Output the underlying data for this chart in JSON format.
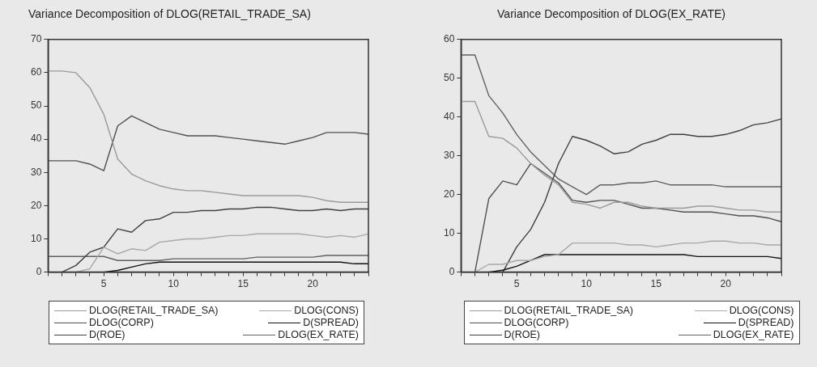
{
  "chart_data": [
    {
      "type": "line",
      "title": "Variance Decomposition of DLOG(RETAIL_TRADE_SA)",
      "x": [
        1,
        2,
        3,
        4,
        5,
        6,
        7,
        8,
        9,
        10,
        11,
        12,
        13,
        14,
        15,
        16,
        17,
        18,
        19,
        20,
        21,
        22,
        23,
        24
      ],
      "xlim": [
        1,
        24
      ],
      "xticks": [
        {
          "value": 1,
          "label": null
        },
        {
          "value": 2,
          "label": null
        },
        {
          "value": 3,
          "label": null
        },
        {
          "value": 4,
          "label": null
        },
        5,
        {
          "value": 6,
          "label": null
        },
        {
          "value": 7,
          "label": null
        },
        {
          "value": 8,
          "label": null
        },
        {
          "value": 9,
          "label": null
        },
        10,
        {
          "value": 11,
          "label": null
        },
        {
          "value": 12,
          "label": null
        },
        {
          "value": 13,
          "label": null
        },
        {
          "value": 14,
          "label": null
        },
        15,
        {
          "value": 16,
          "label": null
        },
        {
          "value": 17,
          "label": null
        },
        {
          "value": 18,
          "label": null
        },
        {
          "value": 19,
          "label": null
        },
        20,
        {
          "value": 21,
          "label": null
        },
        {
          "value": 22,
          "label": null
        },
        {
          "value": 23,
          "label": null
        },
        {
          "value": 24,
          "label": null
        }
      ],
      "ylim": [
        0,
        70
      ],
      "yticks": [
        0,
        10,
        20,
        30,
        40,
        50,
        60,
        70
      ],
      "grid": false,
      "legend": "bottom",
      "series": [
        {
          "name": "DLOG(RETAIL_TRADE_SA)",
          "color": "#9a9a9a",
          "values": [
            60.5,
            60.5,
            60,
            55.5,
            47.5,
            34,
            29.5,
            27.5,
            26,
            25,
            24.5,
            24.5,
            24,
            23.5,
            23,
            23,
            23,
            23,
            23,
            22.5,
            21.5,
            21,
            21,
            21
          ]
        },
        {
          "name": "DLOG(CONS)",
          "color": "#a8a8a8",
          "values": [
            0,
            0,
            0,
            1,
            7.5,
            5.5,
            7,
            6.5,
            9,
            9.5,
            10,
            10,
            10.5,
            11,
            11,
            11.5,
            11.5,
            11.5,
            11.5,
            11,
            10.5,
            11,
            10.5,
            11.5
          ]
        },
        {
          "name": "DLOG(CORP)",
          "color": "#505050",
          "values": [
            33.5,
            33.5,
            33.5,
            32.5,
            30.5,
            44,
            47,
            45,
            43,
            42,
            41,
            41,
            41,
            40.5,
            40,
            39.5,
            39,
            38.5,
            39.5,
            40.5,
            42,
            42,
            42,
            41.5
          ]
        },
        {
          "name": "D(SPREAD)",
          "color": "#111111",
          "values": [
            0,
            0,
            0,
            0,
            0,
            0.5,
            1.5,
            2.5,
            3,
            3,
            3,
            3,
            3,
            3,
            3,
            3,
            3,
            3,
            3,
            3,
            3,
            3,
            2.5,
            2.5
          ]
        },
        {
          "name": "D(ROE)",
          "color": "#404040",
          "values": [
            0,
            0,
            2,
            6,
            7.5,
            13,
            12,
            15.5,
            16,
            18,
            18,
            18.5,
            18.5,
            19,
            19,
            19.5,
            19.5,
            19,
            18.5,
            18.5,
            19,
            18.5,
            19,
            19
          ]
        },
        {
          "name": "DLOG(EX_RATE)",
          "color": "#606060",
          "values": [
            4.7,
            4.7,
            4.7,
            4.7,
            4.7,
            3.5,
            3.5,
            3.5,
            3.5,
            4,
            4,
            4,
            4,
            4,
            4,
            4.5,
            4.5,
            4.5,
            4.5,
            4.5,
            5,
            5,
            5,
            5
          ]
        }
      ]
    },
    {
      "type": "line",
      "title": "Variance Decomposition of DLOG(EX_RATE)",
      "x": [
        1,
        2,
        3,
        4,
        5,
        6,
        7,
        8,
        9,
        10,
        11,
        12,
        13,
        14,
        15,
        16,
        17,
        18,
        19,
        20,
        21,
        22,
        23,
        24
      ],
      "xlim": [
        1,
        24
      ],
      "xticks": [
        {
          "value": 1,
          "label": null
        },
        {
          "value": 2,
          "label": null
        },
        {
          "value": 3,
          "label": null
        },
        {
          "value": 4,
          "label": null
        },
        5,
        {
          "value": 6,
          "label": null
        },
        {
          "value": 7,
          "label": null
        },
        {
          "value": 8,
          "label": null
        },
        {
          "value": 9,
          "label": null
        },
        10,
        {
          "value": 11,
          "label": null
        },
        {
          "value": 12,
          "label": null
        },
        {
          "value": 13,
          "label": null
        },
        {
          "value": 14,
          "label": null
        },
        15,
        {
          "value": 16,
          "label": null
        },
        {
          "value": 17,
          "label": null
        },
        {
          "value": 18,
          "label": null
        },
        {
          "value": 19,
          "label": null
        },
        20,
        {
          "value": 21,
          "label": null
        },
        {
          "value": 22,
          "label": null
        },
        {
          "value": 23,
          "label": null
        },
        {
          "value": 24,
          "label": null
        }
      ],
      "ylim": [
        0,
        60
      ],
      "yticks": [
        0,
        10,
        20,
        30,
        40,
        50,
        60
      ],
      "grid": false,
      "legend": "bottom",
      "series": [
        {
          "name": "DLOG(RETAIL_TRADE_SA)",
          "color": "#9a9a9a",
          "values": [
            44,
            44,
            35,
            34.5,
            32,
            28,
            25,
            22.5,
            18,
            17.5,
            16.5,
            18,
            18,
            17,
            16.5,
            16.5,
            16.5,
            17,
            17,
            16.5,
            16,
            16,
            15.5,
            15.5
          ]
        },
        {
          "name": "DLOG(CONS)",
          "color": "#a8a8a8",
          "values": [
            0,
            0,
            2,
            2,
            3,
            3,
            4,
            4.5,
            7.5,
            7.5,
            7.5,
            7.5,
            7,
            7,
            6.5,
            7,
            7.5,
            7.5,
            8,
            8,
            7.5,
            7.5,
            7,
            7
          ]
        },
        {
          "name": "DLOG(CORP)",
          "color": "#505050",
          "values": [
            0,
            0,
            19,
            23.5,
            22.5,
            28,
            25.5,
            23,
            18.5,
            18,
            18.5,
            18.5,
            17.5,
            16.5,
            16.5,
            16,
            15.5,
            15.5,
            15.5,
            15,
            14.5,
            14.5,
            14,
            13
          ]
        },
        {
          "name": "D(SPREAD)",
          "color": "#111111",
          "values": [
            0,
            0,
            0,
            0.5,
            1.5,
            3,
            4.5,
            4.5,
            4.5,
            4.5,
            4.5,
            4.5,
            4.5,
            4.5,
            4.5,
            4.5,
            4.5,
            4,
            4,
            4,
            4,
            4,
            4,
            3.5
          ]
        },
        {
          "name": "D(ROE)",
          "color": "#404040",
          "values": [
            0,
            0,
            0,
            0,
            6.5,
            11,
            18,
            28,
            35,
            34,
            32.5,
            30.5,
            31,
            33,
            34,
            35.5,
            35.5,
            35,
            35,
            35.5,
            36.5,
            38,
            38.5,
            39.5
          ]
        },
        {
          "name": "DLOG(EX_RATE)",
          "color": "#606060",
          "values": [
            56,
            56,
            45.5,
            41,
            35.5,
            31,
            27.5,
            24,
            22,
            20,
            22.5,
            22.5,
            23,
            23,
            23.5,
            22.5,
            22.5,
            22.5,
            22.5,
            22,
            22,
            22,
            22,
            22
          ]
        }
      ]
    }
  ]
}
